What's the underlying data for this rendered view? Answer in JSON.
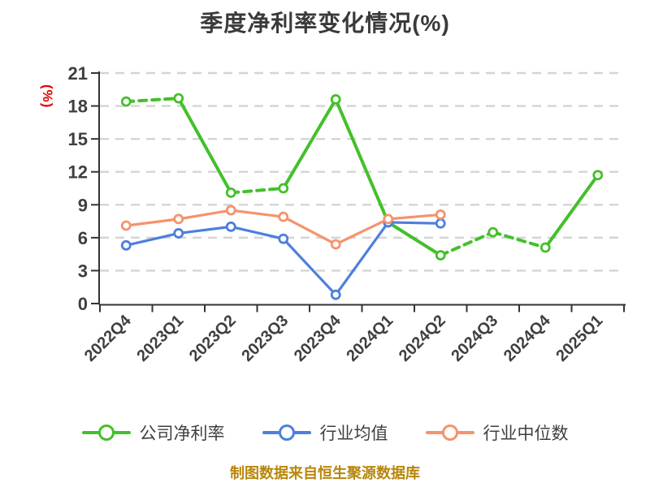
{
  "title": "季度净利率变化情况(%)",
  "y_axis_label": "(%)",
  "footer": "制图数据来自恒生聚源数据库",
  "colors": {
    "title_text": "#3a3a3a",
    "axis": "#333333",
    "tick_label": "#3f3f3f",
    "gridline": "#d4d4d4",
    "y_axis_label": "#e60000",
    "footer_text": "#b8860b",
    "company": "#44c02a",
    "industry_mean": "#4d7fdd",
    "industry_median": "#f5936c",
    "marker_fill": "#ffffff"
  },
  "chart_data": {
    "type": "line",
    "title": "季度净利率变化情况(%)",
    "categories": [
      "2022Q4",
      "2023Q1",
      "2023Q2",
      "2023Q3",
      "2023Q4",
      "2024Q1",
      "2024Q2",
      "2024Q3",
      "2024Q4",
      "2025Q1"
    ],
    "series": [
      {
        "name": "公司净利率",
        "color": "#44c02a",
        "values": [
          18.4,
          18.7,
          10.1,
          10.5,
          18.6,
          7.4,
          4.4,
          6.5,
          5.1,
          11.7
        ],
        "dashed_from": [
          0,
          2,
          6,
          7
        ]
      },
      {
        "name": "行业均值",
        "color": "#4d7fdd",
        "values": [
          5.3,
          6.4,
          7.0,
          5.9,
          0.8,
          7.4,
          7.3,
          null,
          null,
          null
        ],
        "dashed_from": []
      },
      {
        "name": "行业中位数",
        "color": "#f5936c",
        "values": [
          7.1,
          7.7,
          8.5,
          7.9,
          5.4,
          7.7,
          8.1,
          null,
          null,
          null
        ],
        "dashed_from": []
      }
    ],
    "xlabel": "",
    "ylabel": "(%)",
    "ylim": [
      0,
      21
    ],
    "yticks": [
      0,
      3,
      6,
      9,
      12,
      15,
      18,
      21
    ],
    "grid": "horizontal-dashed",
    "legend_position": "bottom",
    "marker": "circle-white-fill"
  }
}
